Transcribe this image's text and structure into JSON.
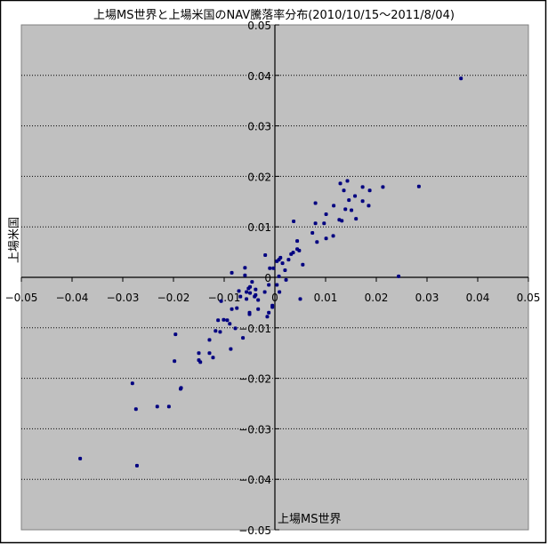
{
  "chart_data": {
    "type": "scatter",
    "title": "上場MS世界と上場米国のNAV騰落率分布(2010/10/15～2011/8/04)",
    "xlabel": "上場MS世界",
    "ylabel": "上場米国",
    "xlim": [
      -0.05,
      0.05
    ],
    "ylim": [
      -0.05,
      0.05
    ],
    "x_ticks": [
      "-0.05",
      "-0.04",
      "-0.03",
      "-0.02",
      "-0.01",
      "0",
      "0.01",
      "0.02",
      "0.03",
      "0.04",
      "0.05"
    ],
    "y_ticks": [
      "0.05",
      "0.04",
      "0.03",
      "0.02",
      "0.01",
      "0",
      "-0.01",
      "-0.02",
      "-0.03",
      "-0.04",
      "-0.05"
    ],
    "grid": "horizontal dotted major gridlines",
    "legend": "none",
    "colors": {
      "point": "#000080",
      "plot_bg": "#C0C0C0",
      "plot_border": "#808080",
      "grid": "#000000"
    },
    "points": [
      [
        0.0129,
        0.0186
      ],
      [
        0.0143,
        0.0191
      ],
      [
        0.0136,
        0.0172
      ],
      [
        0.0173,
        0.0179
      ],
      [
        0.0187,
        0.0172
      ],
      [
        0.0213,
        0.0179
      ],
      [
        0.0146,
        0.0153
      ],
      [
        0.0158,
        0.0161
      ],
      [
        0.0173,
        0.0151
      ],
      [
        0.0139,
        0.0135
      ],
      [
        0.0151,
        0.0133
      ],
      [
        0.0185,
        0.0142
      ],
      [
        0.008,
        0.0147
      ],
      [
        0.0116,
        0.0142
      ],
      [
        0.0101,
        0.0125
      ],
      [
        0.0037,
        0.0111
      ],
      [
        0.008,
        0.0107
      ],
      [
        0.0097,
        0.0107
      ],
      [
        0.0127,
        0.0114
      ],
      [
        0.0132,
        0.0112
      ],
      [
        0.016,
        0.0116
      ],
      [
        0.0074,
        0.0088
      ],
      [
        0.0083,
        0.007
      ],
      [
        0.0101,
        0.0077
      ],
      [
        0.0115,
        0.0082
      ],
      [
        0.0044,
        0.0072
      ],
      [
        0.0044,
        0.0056
      ],
      [
        0.0048,
        0.0053
      ],
      [
        0.0036,
        0.0049
      ],
      [
        0.0032,
        0.0046
      ],
      [
        0.0027,
        0.0035
      ],
      [
        0.0011,
        0.0039
      ],
      [
        0.0008,
        0.0035
      ],
      [
        0.0004,
        0.0032
      ],
      [
        0.0015,
        0.0028
      ],
      [
        -0.0019,
        0.0044
      ],
      [
        0.0055,
        0.0025
      ],
      [
        0.002,
        0.0014
      ],
      [
        -0.001,
        0.0018
      ],
      [
        -0.0003,
        0.0018
      ],
      [
        -0.0059,
        0.0019
      ],
      [
        -0.0059,
        0.0004
      ],
      [
        -0.0085,
        0.0009
      ],
      [
        0.0008,
        0.0002
      ],
      [
        0.0022,
        -0.0005
      ],
      [
        -0.0045,
        -0.0009
      ],
      [
        -0.0049,
        -0.0019
      ],
      [
        -0.0052,
        -0.0022
      ],
      [
        -0.0038,
        -0.0024
      ],
      [
        -0.0071,
        -0.0027
      ],
      [
        -0.0056,
        -0.0029
      ],
      [
        -0.0068,
        -0.0038
      ],
      [
        -0.0056,
        -0.0043
      ],
      [
        -0.0049,
        -0.0031
      ],
      [
        -0.0038,
        -0.0035
      ],
      [
        -0.004,
        -0.0038
      ],
      [
        -0.0033,
        -0.0045
      ],
      [
        -0.002,
        -0.0029
      ],
      [
        -0.0012,
        -0.0015
      ],
      [
        0.0004,
        -0.0015
      ],
      [
        0.0009,
        -0.0029
      ],
      [
        0.005,
        -0.0043
      ],
      [
        -0.0106,
        -0.0047
      ],
      [
        -0.0085,
        -0.0063
      ],
      [
        -0.0075,
        -0.0061
      ],
      [
        -0.005,
        -0.007
      ],
      [
        -0.005,
        -0.0073
      ],
      [
        -0.0033,
        -0.0063
      ],
      [
        -0.0005,
        -0.0056
      ],
      [
        -0.0005,
        -0.0059
      ],
      [
        -0.0012,
        -0.007
      ],
      [
        -0.0015,
        -0.0078
      ],
      [
        -0.0112,
        -0.0085
      ],
      [
        -0.0101,
        -0.0084
      ],
      [
        -0.0094,
        -0.0085
      ],
      [
        -0.0089,
        -0.0092
      ],
      [
        -0.0078,
        -0.0101
      ],
      [
        -0.0117,
        -0.0106
      ],
      [
        -0.0108,
        -0.0108
      ],
      [
        -0.0063,
        -0.012
      ],
      [
        -0.0129,
        -0.0124
      ],
      [
        -0.0087,
        -0.0142
      ],
      [
        -0.015,
        -0.015
      ],
      [
        -0.0129,
        -0.015
      ],
      [
        -0.015,
        -0.0164
      ],
      [
        -0.0147,
        -0.0168
      ],
      [
        -0.0122,
        -0.0159
      ],
      [
        -0.0185,
        -0.0219
      ],
      [
        0.0367,
        0.0394
      ],
      [
        0.0284,
        0.018
      ],
      [
        0.0244,
        0.0002
      ],
      [
        -0.0196,
        -0.0113
      ],
      [
        -0.0198,
        -0.0166
      ],
      [
        -0.0186,
        -0.0221
      ],
      [
        -0.0281,
        -0.021
      ],
      [
        -0.0274,
        -0.0261
      ],
      [
        -0.0232,
        -0.0256
      ],
      [
        -0.0209,
        -0.0256
      ],
      [
        -0.0384,
        -0.0359
      ],
      [
        -0.0272,
        -0.0373
      ]
    ]
  }
}
